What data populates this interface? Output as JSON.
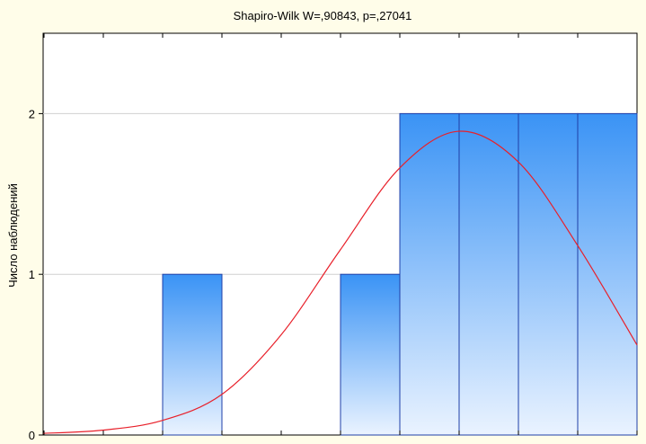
{
  "chart_data": {
    "type": "bar",
    "title": "Shapiro-Wilk W=,90843, p=,27041",
    "xlabel": "",
    "ylabel": "Число наблюдений",
    "ylim": [
      0,
      2.5
    ],
    "yticks": [
      "0",
      "1",
      "2"
    ],
    "x_bins": 10,
    "values": [
      0,
      0,
      1,
      0,
      0,
      1,
      2,
      2,
      2,
      2
    ],
    "normal_fit": {
      "color": "#e8202a",
      "curve_values": [
        0.01,
        0.03,
        0.09,
        0.25,
        0.62,
        1.15,
        1.66,
        1.89,
        1.7,
        1.18,
        0.56
      ]
    },
    "grid": true,
    "bar_color_top": "#3a93f5",
    "bar_color_bottom": "#eaf3ff",
    "bar_edge_color": "#1f3fa8"
  }
}
